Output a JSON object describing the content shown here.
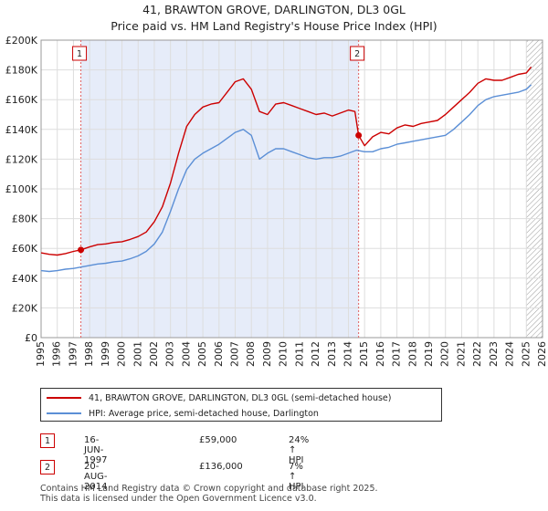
{
  "title": "41, BRAWTON GROVE, DARLINGTON, DL3 0GL",
  "subtitle": "Price paid vs. HM Land Registry's House Price Index (HPI)",
  "chart_data": {
    "type": "line",
    "xlim": [
      1995,
      2026
    ],
    "ylim": [
      0,
      200000
    ],
    "x_ticks": [
      1995,
      1996,
      1997,
      1998,
      1999,
      2000,
      2001,
      2002,
      2003,
      2004,
      2005,
      2006,
      2007,
      2008,
      2009,
      2010,
      2011,
      2012,
      2013,
      2014,
      2015,
      2016,
      2017,
      2018,
      2019,
      2020,
      2021,
      2022,
      2023,
      2024,
      2025,
      2026
    ],
    "y_ticks": [
      0,
      20000,
      40000,
      60000,
      80000,
      100000,
      120000,
      140000,
      160000,
      180000,
      200000
    ],
    "y_tick_labels": [
      "£0",
      "£20K",
      "£40K",
      "£60K",
      "£80K",
      "£100K",
      "£120K",
      "£140K",
      "£160K",
      "£180K",
      "£200K"
    ],
    "series": [
      {
        "name": "41, BRAWTON GROVE, DARLINGTON, DL3 0GL (semi-detached house)",
        "color": "#cc0000",
        "x": [
          1995,
          1995.5,
          1996,
          1996.5,
          1997,
          1997.46,
          1998,
          1998.5,
          1999,
          1999.5,
          2000,
          2000.5,
          2001,
          2001.5,
          2002,
          2002.5,
          2003,
          2003.5,
          2004,
          2004.5,
          2005,
          2005.5,
          2006,
          2006.5,
          2007,
          2007.5,
          2008,
          2008.5,
          2009,
          2009.5,
          2010,
          2010.5,
          2011,
          2011.5,
          2012,
          2012.5,
          2013,
          2013.5,
          2014,
          2014.4,
          2014.63,
          2015,
          2015.5,
          2016,
          2016.5,
          2017,
          2017.5,
          2018,
          2018.5,
          2019,
          2019.5,
          2020,
          2020.5,
          2021,
          2021.5,
          2022,
          2022.5,
          2023,
          2023.5,
          2024,
          2024.5,
          2025,
          2025.3
        ],
        "y": [
          57000,
          56000,
          55500,
          56500,
          58000,
          59000,
          61000,
          62500,
          63000,
          64000,
          64500,
          66000,
          68000,
          71000,
          78000,
          88000,
          104000,
          124000,
          142000,
          150000,
          155000,
          157000,
          158000,
          165000,
          172000,
          174000,
          167000,
          152000,
          150000,
          157000,
          158000,
          156000,
          154000,
          152000,
          150000,
          151000,
          149000,
          151000,
          153000,
          152000,
          136000,
          129000,
          135000,
          138000,
          137000,
          141000,
          143000,
          142000,
          144000,
          145000,
          146000,
          150000,
          155000,
          160000,
          165000,
          171000,
          174000,
          173000,
          173000,
          175000,
          177000,
          178000,
          182000
        ]
      },
      {
        "name": "HPI: Average price, semi-detached house, Darlington",
        "color": "#5b8fd6",
        "x": [
          1995,
          1995.5,
          1996,
          1996.5,
          1997,
          1997.5,
          1998,
          1998.5,
          1999,
          1999.5,
          2000,
          2000.5,
          2001,
          2001.5,
          2002,
          2002.5,
          2003,
          2003.5,
          2004,
          2004.5,
          2005,
          2005.5,
          2006,
          2006.5,
          2007,
          2007.5,
          2008,
          2008.5,
          2009,
          2009.5,
          2010,
          2010.5,
          2011,
          2011.5,
          2012,
          2012.5,
          2013,
          2013.5,
          2014,
          2014.5,
          2015,
          2015.5,
          2016,
          2016.5,
          2017,
          2017.5,
          2018,
          2018.5,
          2019,
          2019.5,
          2020,
          2020.5,
          2021,
          2021.5,
          2022,
          2022.5,
          2023,
          2023.5,
          2024,
          2024.5,
          2025,
          2025.3
        ],
        "y": [
          45000,
          44500,
          45000,
          46000,
          46500,
          47500,
          48500,
          49500,
          50000,
          51000,
          51500,
          53000,
          55000,
          58000,
          63000,
          71000,
          85000,
          100000,
          113000,
          120000,
          124000,
          127000,
          130000,
          134000,
          138000,
          140000,
          136000,
          120000,
          124000,
          127000,
          127000,
          125000,
          123000,
          121000,
          120000,
          121000,
          121000,
          122000,
          124000,
          126000,
          125000,
          125000,
          127000,
          128000,
          130000,
          131000,
          132000,
          133000,
          134000,
          135000,
          136000,
          140000,
          145000,
          150000,
          156000,
          160000,
          162000,
          163000,
          164000,
          165000,
          167000,
          170000
        ]
      }
    ],
    "annotations": [
      {
        "label": "1",
        "x": 1997.46,
        "y": 59000
      },
      {
        "label": "2",
        "x": 2014.63,
        "y": 136000
      }
    ],
    "hatch_from": 2025.0
  },
  "legend": {
    "property_label": "41, BRAWTON GROVE, DARLINGTON, DL3 0GL (semi-detached house)",
    "hpi_label": "HPI: Average price, semi-detached house, Darlington",
    "property_color": "#cc0000",
    "hpi_color": "#5b8fd6"
  },
  "transactions": [
    {
      "num": "1",
      "date": "16-JUN-1997",
      "price": "£59,000",
      "hpi": "24% ↑ HPI"
    },
    {
      "num": "2",
      "date": "20-AUG-2014",
      "price": "£136,000",
      "hpi": "7% ↑ HPI"
    }
  ],
  "footer": {
    "line1": "Contains HM Land Registry data © Crown copyright and database right 2025.",
    "line2": "This data is licensed under the Open Government Licence v3.0."
  }
}
